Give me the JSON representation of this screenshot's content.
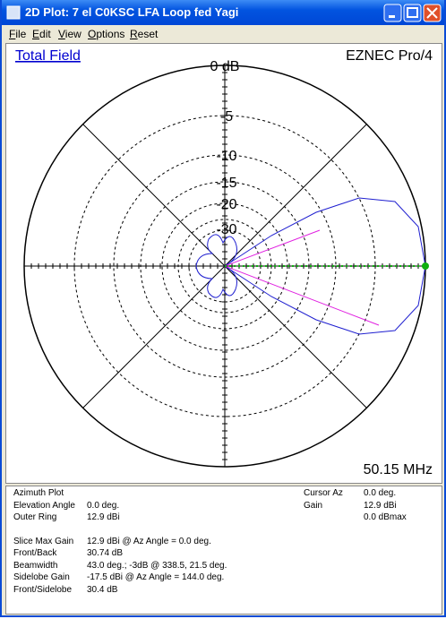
{
  "window": {
    "title": "2D Plot: 7 el C0KSC LFA Loop fed Yagi"
  },
  "menu": [
    "File",
    "Edit",
    "View",
    "Options",
    "Reset"
  ],
  "plot": {
    "field_label": "Total Field",
    "program": "EZNEC Pro/4",
    "ring_labels": [
      "0 dB",
      "-5",
      "-10",
      "-15",
      "-20",
      "-30"
    ],
    "frequency": "50.15 MHz"
  },
  "info": {
    "plot_kind": "Azimuth Plot",
    "settings": [
      {
        "label": "Elevation Angle",
        "value": "0.0 deg."
      },
      {
        "label": "Outer Ring",
        "value": "12.9 dBi"
      }
    ],
    "cursor": [
      {
        "label": "Cursor Az",
        "value": "0.0 deg."
      },
      {
        "label": "Gain",
        "value": "12.9 dBi"
      }
    ],
    "gain_max": "0.0 dBmax",
    "stats": [
      {
        "label": "Slice Max Gain",
        "value": "12.9 dBi @ Az Angle = 0.0 deg."
      },
      {
        "label": "Front/Back",
        "value": "30.74 dB"
      },
      {
        "label": "Beamwidth",
        "value": "43.0 deg.; -3dB @ 338.5, 21.5 deg."
      },
      {
        "label": "Sidelobe Gain",
        "value": "-17.5 dBi @ Az Angle = 144.0 deg."
      },
      {
        "label": "Front/Sidelobe",
        "value": "30.4 dB"
      }
    ]
  }
}
